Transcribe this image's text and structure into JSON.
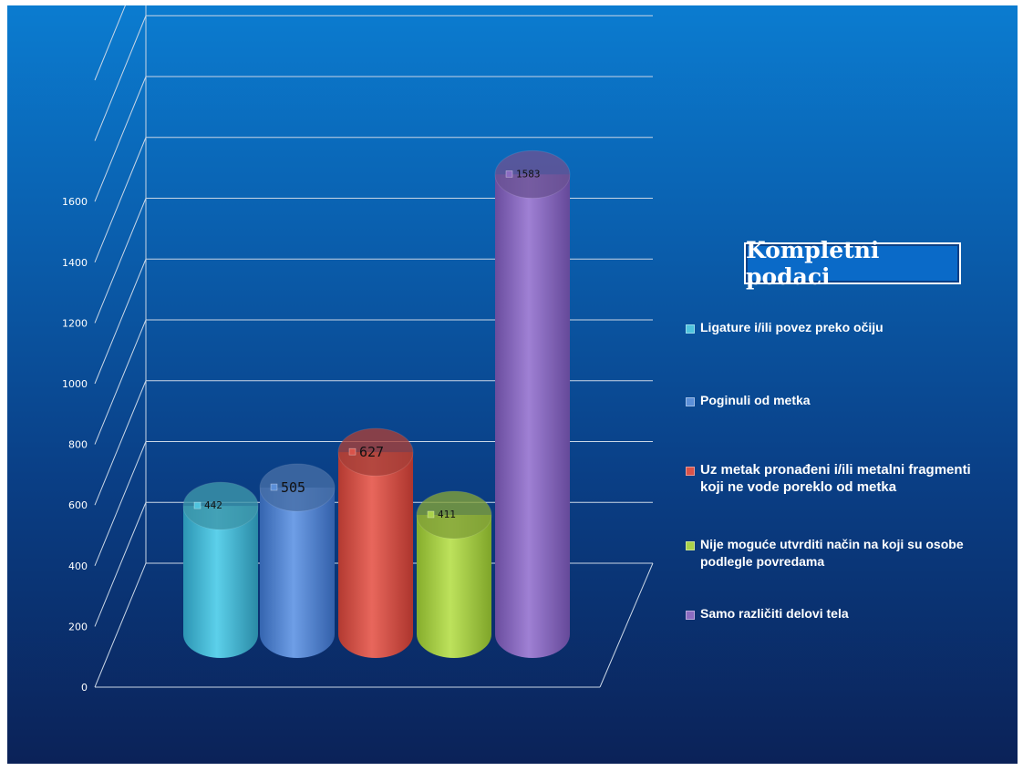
{
  "chart_data": {
    "type": "bar",
    "title": "Kompletni podaci",
    "xlabel": "",
    "ylabel": "",
    "ylim": [
      0,
      1600
    ],
    "yticks": [
      0,
      200,
      400,
      600,
      800,
      1000,
      1200,
      1400,
      1600
    ],
    "grid": true,
    "legend": "right",
    "bar_shape": "cylinder-3d",
    "series": [
      {
        "name": "Ligature i/ili povez preko očiju",
        "value": 442,
        "value_label": "442",
        "color": "#4fc3dd"
      },
      {
        "name": "Poginuli od metka",
        "value": 505,
        "value_label": "505",
        "color": "#5b8fd8"
      },
      {
        "name": "Uz metak pronađeni i/ili metalni fragmenti koji ne vode poreklo od metka",
        "value": 627,
        "value_label": "627",
        "color": "#d9534a"
      },
      {
        "name": "Nije moguće utvrditi način na koji su osobe podlegle povredama",
        "value": 411,
        "value_label": "411",
        "color": "#a9d24a"
      },
      {
        "name": "Samo različiti delovi tela",
        "value": 1583,
        "value_label": "1583",
        "color": "#8b6cc1"
      }
    ]
  }
}
